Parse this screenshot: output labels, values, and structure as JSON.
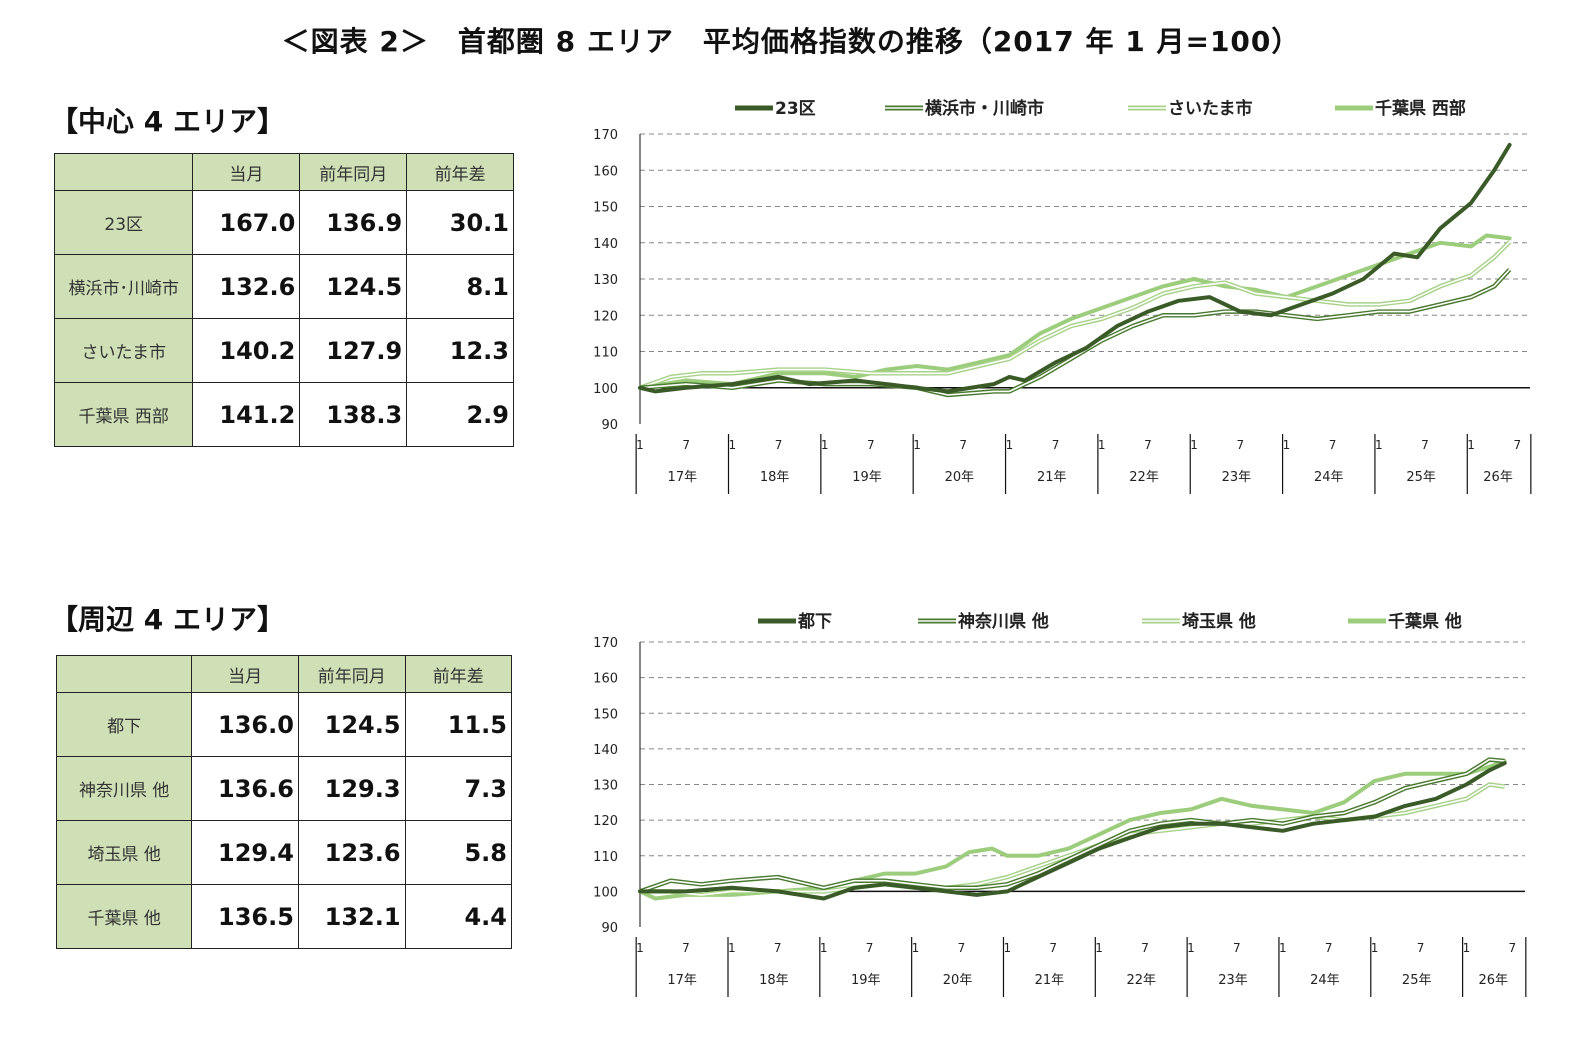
{
  "page_title": "＜図表 2＞　首都圏 8 エリア　平均価格指数の推移（2017 年 1 月=100）",
  "sections": [
    {
      "heading": "【中心 4 エリア】",
      "table": {
        "headers": [
          "",
          "当月",
          "前年同月",
          "前年差"
        ],
        "rows": [
          {
            "label": "23区",
            "values": [
              "167.0",
              "136.9",
              "30.1"
            ]
          },
          {
            "label": "横浜市･川崎市",
            "values": [
              "132.6",
              "124.5",
              "8.1"
            ]
          },
          {
            "label": "さいたま市",
            "values": [
              "140.2",
              "127.9",
              "12.3"
            ]
          },
          {
            "label": "千葉県 西部",
            "values": [
              "141.2",
              "138.3",
              "2.9"
            ]
          }
        ]
      }
    },
    {
      "heading": "【周辺 4 エリア】",
      "table": {
        "headers": [
          "",
          "当月",
          "前年同月",
          "前年差"
        ],
        "rows": [
          {
            "label": "都下",
            "values": [
              "136.0",
              "124.5",
              "11.5"
            ]
          },
          {
            "label": "神奈川県 他",
            "values": [
              "136.6",
              "129.3",
              "7.3"
            ]
          },
          {
            "label": "埼玉県 他",
            "values": [
              "129.4",
              "123.6",
              "5.8"
            ]
          },
          {
            "label": "千葉県 他",
            "values": [
              "136.5",
              "132.1",
              "4.4"
            ]
          }
        ]
      }
    }
  ],
  "chart_data": [
    {
      "type": "line",
      "ylim": [
        90,
        170
      ],
      "yticks": [
        90,
        100,
        110,
        120,
        130,
        140,
        150,
        160,
        170
      ],
      "x_month_ticks": [
        "1",
        "7"
      ],
      "x_years": [
        "17年",
        "18年",
        "19年",
        "20年",
        "21年",
        "22年",
        "23年",
        "24年",
        "25年",
        "26年"
      ],
      "last_month": 8,
      "legend_position": "top",
      "series": [
        {
          "name": "23区",
          "style": "thick-dark",
          "color": "#3a5a28",
          "points": [
            [
              0,
              100
            ],
            [
              2,
              99
            ],
            [
              6,
              100
            ],
            [
              12,
              101
            ],
            [
              18,
              103
            ],
            [
              22,
              101
            ],
            [
              28,
              102
            ],
            [
              32,
              101
            ],
            [
              36,
              100
            ],
            [
              40,
              99
            ],
            [
              46,
              101
            ],
            [
              48,
              103
            ],
            [
              50,
              102
            ],
            [
              54,
              107
            ],
            [
              58,
              111
            ],
            [
              62,
              117
            ],
            [
              66,
              121
            ],
            [
              70,
              124
            ],
            [
              74,
              125
            ],
            [
              78,
              121
            ],
            [
              82,
              120
            ],
            [
              86,
              123
            ],
            [
              90,
              126
            ],
            [
              94,
              130
            ],
            [
              98,
              137
            ],
            [
              101,
              136
            ],
            [
              104,
              144
            ],
            [
              108,
              151
            ],
            [
              111,
              160
            ],
            [
              113,
              167
            ]
          ]
        },
        {
          "name": "横浜市・川崎市",
          "style": "double-dark",
          "color": "#4a7a30",
          "points": [
            [
              0,
              100
            ],
            [
              6,
              101
            ],
            [
              12,
              100
            ],
            [
              18,
              102
            ],
            [
              24,
              101
            ],
            [
              30,
              101
            ],
            [
              36,
              100
            ],
            [
              40,
              98
            ],
            [
              46,
              99
            ],
            [
              48,
              99
            ],
            [
              52,
              103
            ],
            [
              56,
              108
            ],
            [
              60,
              113
            ],
            [
              64,
              117
            ],
            [
              68,
              120
            ],
            [
              72,
              120
            ],
            [
              76,
              121
            ],
            [
              80,
              121
            ],
            [
              84,
              120
            ],
            [
              88,
              119
            ],
            [
              92,
              120
            ],
            [
              96,
              121
            ],
            [
              100,
              121
            ],
            [
              104,
              123
            ],
            [
              108,
              125
            ],
            [
              111,
              128
            ],
            [
              113,
              132.6
            ]
          ]
        },
        {
          "name": "さいたま市",
          "style": "double-light",
          "color": "#a8d28a",
          "points": [
            [
              0,
              100
            ],
            [
              4,
              103
            ],
            [
              8,
              104
            ],
            [
              12,
              104
            ],
            [
              18,
              105
            ],
            [
              24,
              105
            ],
            [
              30,
              104
            ],
            [
              36,
              104
            ],
            [
              40,
              104
            ],
            [
              44,
              106
            ],
            [
              48,
              108
            ],
            [
              52,
              113
            ],
            [
              56,
              117
            ],
            [
              60,
              119
            ],
            [
              64,
              122
            ],
            [
              68,
              126
            ],
            [
              72,
              128
            ],
            [
              76,
              129
            ],
            [
              80,
              126
            ],
            [
              84,
              125
            ],
            [
              88,
              124
            ],
            [
              92,
              123
            ],
            [
              96,
              123
            ],
            [
              100,
              124
            ],
            [
              104,
              128
            ],
            [
              108,
              131
            ],
            [
              111,
              136
            ],
            [
              113,
              140.2
            ]
          ]
        },
        {
          "name": "千葉県 西部",
          "style": "thick-light",
          "color": "#9ccd7c",
          "points": [
            [
              0,
              100
            ],
            [
              6,
              102
            ],
            [
              12,
              101
            ],
            [
              18,
              104
            ],
            [
              24,
              104
            ],
            [
              28,
              103
            ],
            [
              32,
              105
            ],
            [
              36,
              106
            ],
            [
              40,
              105
            ],
            [
              44,
              107
            ],
            [
              48,
              109
            ],
            [
              52,
              115
            ],
            [
              56,
              119
            ],
            [
              60,
              122
            ],
            [
              64,
              125
            ],
            [
              68,
              128
            ],
            [
              72,
              130
            ],
            [
              76,
              128
            ],
            [
              80,
              127
            ],
            [
              84,
              125
            ],
            [
              88,
              128
            ],
            [
              92,
              131
            ],
            [
              96,
              134
            ],
            [
              100,
              137
            ],
            [
              104,
              140
            ],
            [
              108,
              139
            ],
            [
              110,
              142
            ],
            [
              113,
              141.2
            ]
          ]
        }
      ]
    },
    {
      "type": "line",
      "ylim": [
        90,
        170
      ],
      "yticks": [
        90,
        100,
        110,
        120,
        130,
        140,
        150,
        160,
        170
      ],
      "x_month_ticks": [
        "1",
        "7"
      ],
      "x_years": [
        "17年",
        "18年",
        "19年",
        "20年",
        "21年",
        "22年",
        "23年",
        "24年",
        "25年",
        "26年"
      ],
      "last_month": 8,
      "legend_position": "top",
      "series": [
        {
          "name": "都下",
          "style": "thick-dark",
          "color": "#3a5a28",
          "points": [
            [
              0,
              100
            ],
            [
              6,
              100
            ],
            [
              12,
              101
            ],
            [
              18,
              100
            ],
            [
              24,
              98
            ],
            [
              28,
              101
            ],
            [
              32,
              102
            ],
            [
              36,
              101
            ],
            [
              40,
              100
            ],
            [
              44,
              99
            ],
            [
              48,
              100
            ],
            [
              52,
              104
            ],
            [
              56,
              108
            ],
            [
              60,
              112
            ],
            [
              64,
              115
            ],
            [
              68,
              118
            ],
            [
              72,
              119
            ],
            [
              76,
              119
            ],
            [
              80,
              118
            ],
            [
              84,
              117
            ],
            [
              88,
              119
            ],
            [
              92,
              120
            ],
            [
              96,
              121
            ],
            [
              100,
              124
            ],
            [
              104,
              126
            ],
            [
              108,
              130
            ],
            [
              111,
              134
            ],
            [
              113,
              136
            ]
          ]
        },
        {
          "name": "神奈川県 他",
          "style": "double-dark",
          "color": "#4a7a30",
          "points": [
            [
              0,
              100
            ],
            [
              4,
              103
            ],
            [
              8,
              102
            ],
            [
              12,
              103
            ],
            [
              18,
              104
            ],
            [
              24,
              101
            ],
            [
              28,
              103
            ],
            [
              32,
              103
            ],
            [
              36,
              102
            ],
            [
              40,
              101
            ],
            [
              44,
              101
            ],
            [
              48,
              102
            ],
            [
              52,
              105
            ],
            [
              56,
              109
            ],
            [
              60,
              113
            ],
            [
              64,
              117
            ],
            [
              68,
              119
            ],
            [
              72,
              120
            ],
            [
              76,
              119
            ],
            [
              80,
              120
            ],
            [
              84,
              119
            ],
            [
              88,
              121
            ],
            [
              92,
              122
            ],
            [
              96,
              125
            ],
            [
              100,
              129
            ],
            [
              104,
              131
            ],
            [
              108,
              133
            ],
            [
              111,
              137
            ],
            [
              113,
              136.6
            ]
          ]
        },
        {
          "name": "埼玉県 他",
          "style": "double-light",
          "color": "#a8d28a",
          "points": [
            [
              0,
              100
            ],
            [
              4,
              100
            ],
            [
              8,
              99
            ],
            [
              12,
              100
            ],
            [
              18,
              100
            ],
            [
              24,
              100
            ],
            [
              28,
              101
            ],
            [
              32,
              102
            ],
            [
              36,
              101
            ],
            [
              40,
              101
            ],
            [
              44,
              102
            ],
            [
              48,
              104
            ],
            [
              52,
              107
            ],
            [
              56,
              110
            ],
            [
              60,
              113
            ],
            [
              64,
              116
            ],
            [
              68,
              117
            ],
            [
              72,
              118
            ],
            [
              76,
              119
            ],
            [
              80,
              119
            ],
            [
              84,
              120
            ],
            [
              88,
              121
            ],
            [
              92,
              120
            ],
            [
              96,
              121
            ],
            [
              100,
              122
            ],
            [
              104,
              124
            ],
            [
              108,
              126
            ],
            [
              111,
              130
            ],
            [
              113,
              129.4
            ]
          ]
        },
        {
          "name": "千葉県 他",
          "style": "thick-light",
          "color": "#9ccd7c",
          "points": [
            [
              0,
              100
            ],
            [
              2,
              98
            ],
            [
              6,
              99
            ],
            [
              12,
              99
            ],
            [
              18,
              100
            ],
            [
              24,
              101
            ],
            [
              28,
              103
            ],
            [
              32,
              105
            ],
            [
              36,
              105
            ],
            [
              40,
              107
            ],
            [
              43,
              111
            ],
            [
              46,
              112
            ],
            [
              48,
              110
            ],
            [
              52,
              110
            ],
            [
              56,
              112
            ],
            [
              60,
              116
            ],
            [
              64,
              120
            ],
            [
              68,
              122
            ],
            [
              72,
              123
            ],
            [
              76,
              126
            ],
            [
              80,
              124
            ],
            [
              84,
              123
            ],
            [
              88,
              122
            ],
            [
              92,
              125
            ],
            [
              96,
              131
            ],
            [
              100,
              133
            ],
            [
              104,
              133
            ],
            [
              108,
              133
            ],
            [
              111,
              135
            ],
            [
              113,
              136.5
            ]
          ]
        }
      ]
    }
  ]
}
